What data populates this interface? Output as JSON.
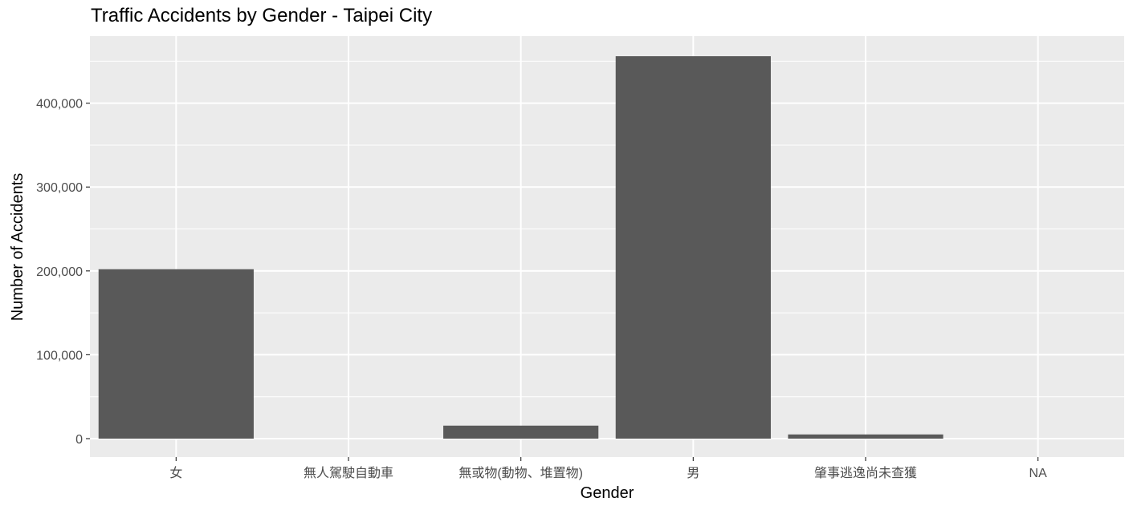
{
  "chart_data": {
    "type": "bar",
    "title": "Traffic Accidents by Gender - Taipei City",
    "xlabel": "Gender",
    "ylabel": "Number of Accidents",
    "categories": [
      "女",
      "無人駕駛自動車",
      "無或物(動物、堆置物)",
      "男",
      "肇事逃逸尚未查獲",
      "NA"
    ],
    "values": [
      202000,
      0,
      15500,
      456000,
      5000,
      0
    ],
    "ylim": [
      -22000,
      480000
    ],
    "yticks": [
      0,
      100000,
      200000,
      300000,
      400000
    ],
    "ytick_labels": [
      "0",
      "100,000",
      "200,000",
      "300,000",
      "400,000"
    ],
    "grid": true,
    "colors": {
      "panel": "#ebebeb",
      "grid": "#ffffff",
      "bar": "#595959",
      "text": "#4d4d4d",
      "title": "#000000"
    }
  }
}
